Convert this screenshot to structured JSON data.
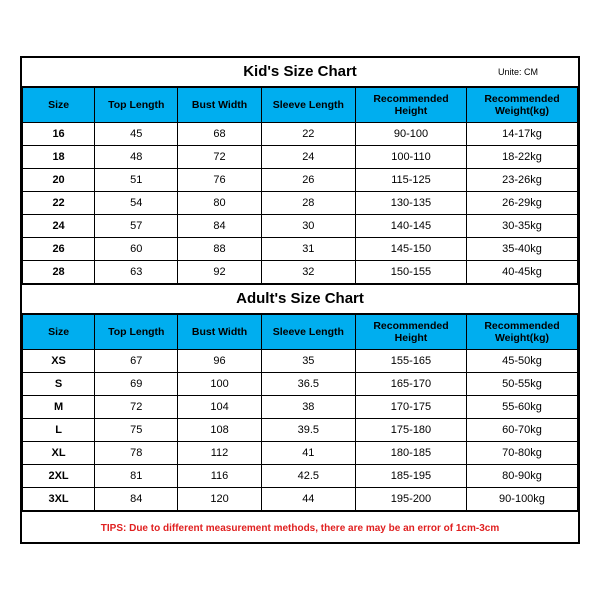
{
  "colors": {
    "header_bg": "#00aeef",
    "border": "#000000",
    "text": "#000000",
    "tips_color": "#e02020",
    "background": "#ffffff"
  },
  "fontsizes": {
    "title": 15,
    "unit": 9,
    "th": 10.5,
    "td": 11,
    "tips": 10
  },
  "kids": {
    "title": "Kid's Size Chart",
    "unit_label": "Unite: CM",
    "columns": [
      "Size",
      "Top Length",
      "Bust Width",
      "Sleeve Length",
      "Recommended Height",
      "Recommended Weight(kg)"
    ],
    "rows": [
      [
        "16",
        "45",
        "68",
        "22",
        "90-100",
        "14-17kg"
      ],
      [
        "18",
        "48",
        "72",
        "24",
        "100-110",
        "18-22kg"
      ],
      [
        "20",
        "51",
        "76",
        "26",
        "115-125",
        "23-26kg"
      ],
      [
        "22",
        "54",
        "80",
        "28",
        "130-135",
        "26-29kg"
      ],
      [
        "24",
        "57",
        "84",
        "30",
        "140-145",
        "30-35kg"
      ],
      [
        "26",
        "60",
        "88",
        "31",
        "145-150",
        "35-40kg"
      ],
      [
        "28",
        "63",
        "92",
        "32",
        "150-155",
        "40-45kg"
      ]
    ]
  },
  "adults": {
    "title": "Adult's Size Chart",
    "columns": [
      "Size",
      "Top Length",
      "Bust Width",
      "Sleeve Length",
      "Recommended Height",
      "Recommended Weight(kg)"
    ],
    "rows": [
      [
        "XS",
        "67",
        "96",
        "35",
        "155-165",
        "45-50kg"
      ],
      [
        "S",
        "69",
        "100",
        "36.5",
        "165-170",
        "50-55kg"
      ],
      [
        "M",
        "72",
        "104",
        "38",
        "170-175",
        "55-60kg"
      ],
      [
        "L",
        "75",
        "108",
        "39.5",
        "175-180",
        "60-70kg"
      ],
      [
        "XL",
        "78",
        "112",
        "41",
        "180-185",
        "70-80kg"
      ],
      [
        "2XL",
        "81",
        "116",
        "42.5",
        "185-195",
        "80-90kg"
      ],
      [
        "3XL",
        "84",
        "120",
        "44",
        "195-200",
        "90-100kg"
      ]
    ]
  },
  "tips": "TIPS: Due to different measurement methods, there are may be an error of 1cm-3cm"
}
